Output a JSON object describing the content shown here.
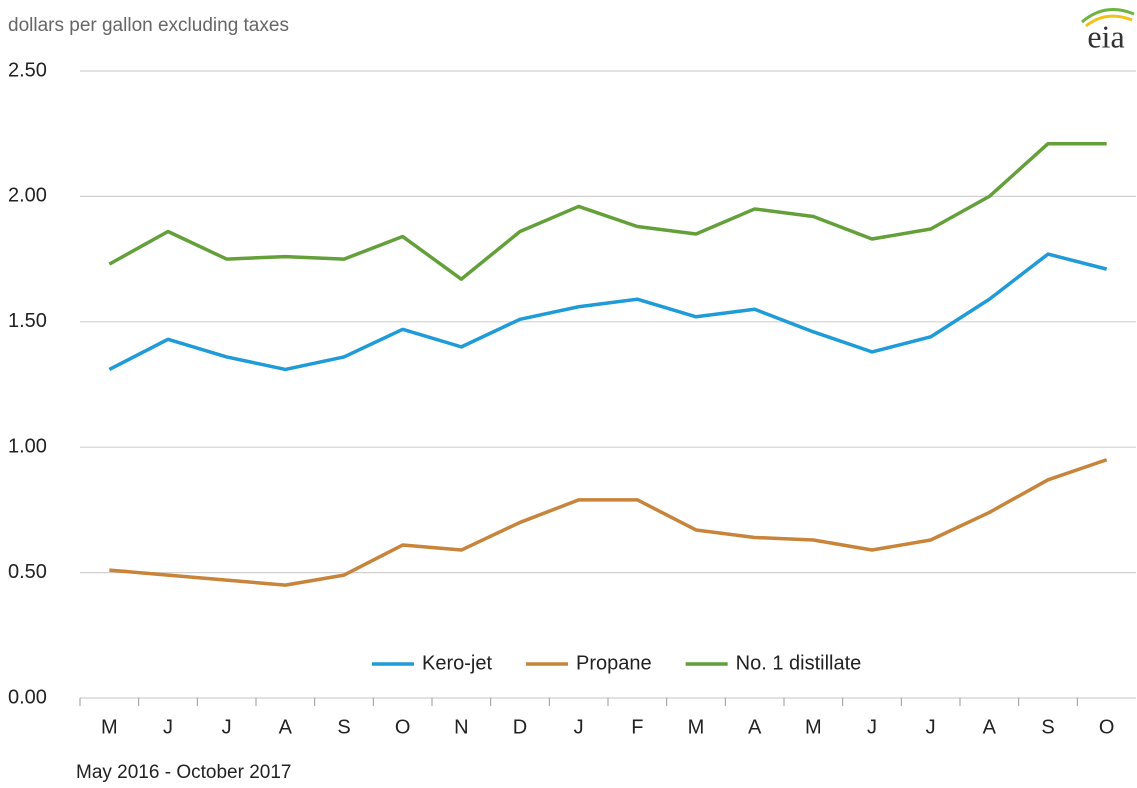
{
  "chart_data": {
    "type": "line",
    "subtitle": "dollars per gallon  excluding taxes",
    "logo": "eia",
    "x_caption": "May 2016  -  October 2017",
    "categories": [
      "M",
      "J",
      "J",
      "A",
      "S",
      "O",
      "N",
      "D",
      "J",
      "F",
      "M",
      "A",
      "M",
      "J",
      "J",
      "A",
      "S",
      "O"
    ],
    "series": [
      {
        "name": "Kero-jet",
        "color": "#1f9bd7",
        "values": [
          1.31,
          1.43,
          1.36,
          1.31,
          1.36,
          1.47,
          1.4,
          1.51,
          1.56,
          1.59,
          1.52,
          1.55,
          1.46,
          1.38,
          1.44,
          1.59,
          1.77,
          1.71
        ]
      },
      {
        "name": "Propane",
        "color": "#c8843a",
        "values": [
          0.51,
          0.49,
          0.47,
          0.45,
          0.49,
          0.61,
          0.59,
          0.7,
          0.79,
          0.79,
          0.67,
          0.64,
          0.63,
          0.59,
          0.63,
          0.74,
          0.87,
          0.95
        ]
      },
      {
        "name": "No. 1 distillate",
        "color": "#63a03a",
        "values": [
          1.73,
          1.86,
          1.75,
          1.76,
          1.75,
          1.84,
          1.67,
          1.86,
          1.96,
          1.88,
          1.85,
          1.95,
          1.92,
          1.83,
          1.87,
          2.0,
          2.21,
          2.21
        ]
      }
    ],
    "ylim": [
      0,
      2.5
    ],
    "yticks": [
      {
        "value": 0,
        "label": "0.00"
      },
      {
        "value": 0.5,
        "label": "0.50"
      },
      {
        "value": 1,
        "label": "1.00"
      },
      {
        "value": 1.5,
        "label": "1.50"
      },
      {
        "value": 2,
        "label": "2.00"
      },
      {
        "value": 2.5,
        "label": "2.50"
      }
    ],
    "grid": true,
    "legend": "bottom"
  }
}
